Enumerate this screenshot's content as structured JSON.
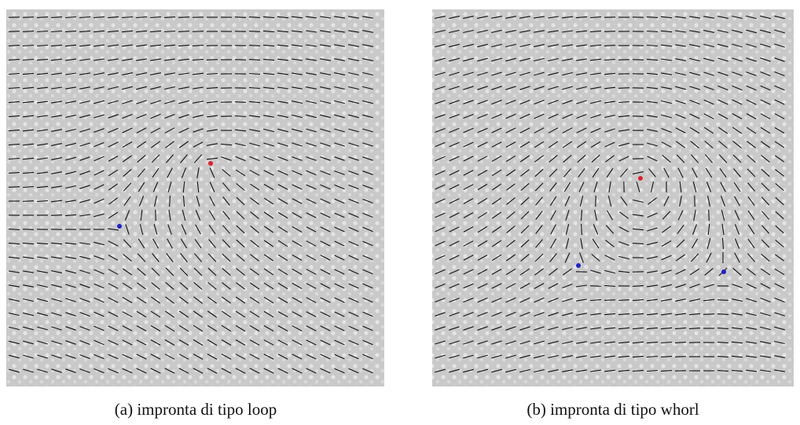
{
  "figure": {
    "panels": [
      {
        "caption": "(a) impronta di tipo loop"
      },
      {
        "caption": "(b) impronta di tipo whorl"
      }
    ]
  }
}
